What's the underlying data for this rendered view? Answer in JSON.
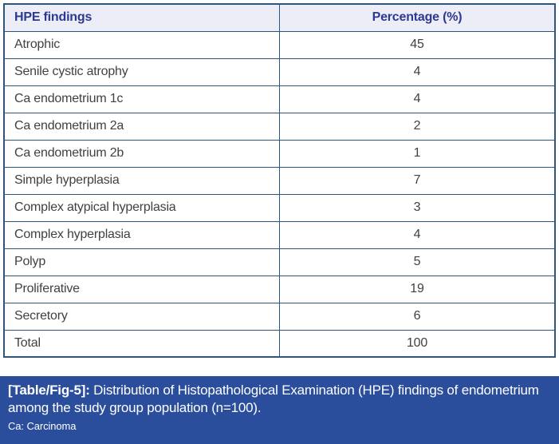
{
  "table": {
    "columns": [
      "HPE findings",
      "Percentage (%)"
    ],
    "rows": [
      {
        "finding": "Atrophic",
        "percentage": "45"
      },
      {
        "finding": "Senile cystic atrophy",
        "percentage": "4"
      },
      {
        "finding": "Ca endometrium 1c",
        "percentage": "4"
      },
      {
        "finding": "Ca endometrium 2a",
        "percentage": "2"
      },
      {
        "finding": "Ca endometrium 2b",
        "percentage": "1"
      },
      {
        "finding": "Simple hyperplasia",
        "percentage": "7"
      },
      {
        "finding": "Complex atypical hyperplasia",
        "percentage": "3"
      },
      {
        "finding": "Complex hyperplasia",
        "percentage": "4"
      },
      {
        "finding": "Polyp",
        "percentage": "5"
      },
      {
        "finding": "Proliferative",
        "percentage": "19"
      },
      {
        "finding": "Secretory",
        "percentage": "6"
      },
      {
        "finding": "Total",
        "percentage": "100"
      }
    ]
  },
  "caption": {
    "label": "[Table/Fig-5]:",
    "text": " Distribution of Histopathological Examination (HPE) findings of endometrium among the study group population (n=100).",
    "note": "Ca: Carcinoma"
  },
  "colors": {
    "border": "#2d567c",
    "header_bg": "#ecedf6",
    "header_text": "#2b3990",
    "cell_text": "#414042",
    "caption_bg": "#2b4e9c",
    "caption_text": "#ffffff"
  },
  "chart_data": {
    "type": "table",
    "title": "[Table/Fig-5]: Distribution of Histopathological Examination (HPE) findings of endometrium among the study group population (n=100).",
    "columns": [
      "HPE findings",
      "Percentage (%)"
    ],
    "categories": [
      "Atrophic",
      "Senile cystic atrophy",
      "Ca endometrium 1c",
      "Ca endometrium 2a",
      "Ca endometrium 2b",
      "Simple hyperplasia",
      "Complex atypical hyperplasia",
      "Complex hyperplasia",
      "Polyp",
      "Proliferative",
      "Secretory",
      "Total"
    ],
    "values": [
      45,
      4,
      4,
      2,
      1,
      7,
      3,
      4,
      5,
      19,
      6,
      100
    ],
    "note": "Ca: Carcinoma"
  }
}
